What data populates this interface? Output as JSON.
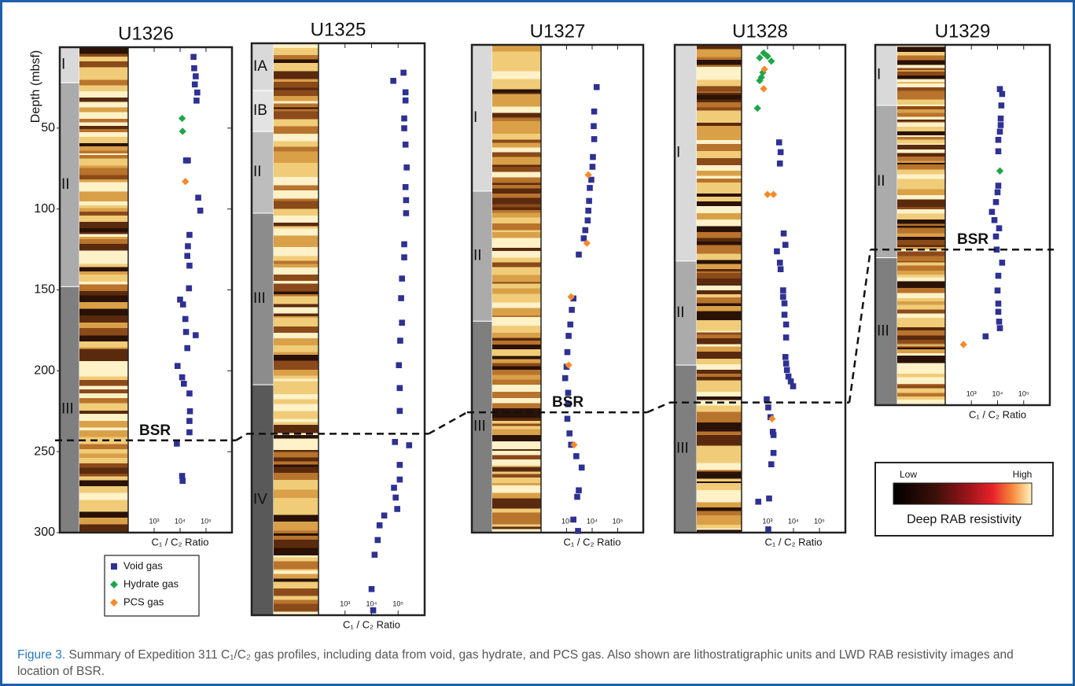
{
  "chart_data": [
    {
      "type": "scatter",
      "title": "U1326",
      "xscale": "log",
      "xlim": [
        100,
        1000000
      ],
      "xticks": [
        {
          "value": 1000,
          "label": "10³"
        },
        {
          "value": 10000,
          "label": "10⁴"
        },
        {
          "value": 100000,
          "label": "10⁵"
        }
      ],
      "xlabel": "C₁ / C₂ Ratio",
      "ylabel": "Depth (mbsf)",
      "y_inverted": true,
      "ylim": [
        0,
        300
      ],
      "yticks": [
        50,
        100,
        150,
        200,
        250,
        300
      ],
      "units": [
        {
          "label": "I",
          "top": 0,
          "bottom": 22,
          "color": "#d9d9d9"
        },
        {
          "label": "II",
          "top": 22,
          "bottom": 148,
          "color": "#ababab"
        },
        {
          "label": "III",
          "top": 148,
          "bottom": 300,
          "color": "#7f7f7f"
        }
      ],
      "bsr_depth": 243,
      "bsr_label": "BSR",
      "series": [
        {
          "name": "Void gas",
          "color": "#2e3192",
          "marker": "square",
          "x": [
            33000,
            35000,
            40000,
            37000,
            46000,
            43000,
            17000,
            20000,
            50000,
            60000,
            23000,
            20000,
            19000,
            23000,
            22000,
            10000,
            13000,
            16000,
            17000,
            40000,
            19000,
            8000,
            12000,
            14000,
            23000,
            24000,
            23000,
            23000,
            7500,
            12000,
            12500
          ],
          "y": [
            6,
            13,
            18,
            23,
            28,
            33,
            70,
            70,
            93,
            101,
            116,
            123,
            129,
            135,
            149,
            156,
            159,
            168,
            176,
            178,
            186,
            197,
            204,
            208,
            214,
            225,
            231,
            238,
            245,
            265,
            268
          ]
        },
        {
          "name": "Hydrate gas",
          "color": "#1fa64a",
          "marker": "diamond",
          "x": [
            12000,
            12500
          ],
          "y": [
            44,
            52
          ]
        },
        {
          "name": "PCS gas",
          "color": "#f58a2a",
          "marker": "diamond",
          "x": [
            16000
          ],
          "y": [
            83
          ]
        }
      ]
    },
    {
      "type": "scatter",
      "title": "U1325",
      "xscale": "log",
      "xlim": [
        100,
        1000000
      ],
      "xticks": [
        {
          "value": 1000,
          "label": "10³"
        },
        {
          "value": 10000,
          "label": "10⁴"
        },
        {
          "value": 100000,
          "label": "10⁵"
        }
      ],
      "xlabel": "C₁ / C₂ Ratio",
      "y_inverted": true,
      "ylim": [
        0,
        350
      ],
      "units": [
        {
          "label": "IA",
          "top": 0,
          "bottom": 29,
          "color": "#d9d9d9"
        },
        {
          "label": "IB",
          "top": 29,
          "bottom": 54,
          "color": "#e3e3e3"
        },
        {
          "label": "II",
          "top": 54,
          "bottom": 104,
          "color": "#bdbdbd"
        },
        {
          "label": "III",
          "top": 104,
          "bottom": 209,
          "color": "#8c8c8c"
        },
        {
          "label": "IV",
          "top": 209,
          "bottom": 350,
          "color": "#595959"
        }
      ],
      "bsr_depth": 239,
      "series": [
        {
          "name": "Void gas",
          "color": "#2e3192",
          "marker": "square",
          "x": [
            66000,
            160000,
            190000,
            190000,
            170000,
            170000,
            190000,
            210000,
            190000,
            200000,
            200000,
            170000,
            170000,
            140000,
            130000,
            140000,
            120000,
            107000,
            115000,
            115000,
            76000,
            260000,
            115000,
            115000,
            70000,
            81000,
            93000,
            30000,
            20000,
            17000,
            13000,
            10000,
            11500
          ],
          "y": [
            23,
            18,
            30,
            35,
            46,
            52,
            62,
            76,
            88,
            96,
            104,
            123,
            131,
            144,
            156,
            171,
            182,
            197,
            211,
            225,
            244,
            246,
            258,
            267,
            272,
            278,
            285,
            289,
            295,
            304,
            313,
            334,
            347
          ]
        }
      ]
    },
    {
      "type": "scatter",
      "title": "U1327",
      "xscale": "log",
      "xlim": [
        100,
        1000000
      ],
      "xticks": [
        {
          "value": 1000,
          "label": "10³"
        },
        {
          "value": 10000,
          "label": "10⁴"
        },
        {
          "value": 100000,
          "label": "10⁵"
        }
      ],
      "xlabel": "C₁ / C₂ Ratio",
      "y_inverted": true,
      "ylim": [
        0,
        300
      ],
      "units": [
        {
          "label": "I",
          "top": 0,
          "bottom": 90,
          "color": "#d9d9d9"
        },
        {
          "label": "II",
          "top": 90,
          "bottom": 170,
          "color": "#ababab"
        },
        {
          "label": "III",
          "top": 170,
          "bottom": 300,
          "color": "#7f7f7f"
        }
      ],
      "bsr_depth": 226,
      "bsr_label": "BSR",
      "series": [
        {
          "name": "Void gas",
          "color": "#2e3192",
          "marker": "square",
          "x": [
            15000,
            12000,
            11500,
            12000,
            10700,
            10300,
            9300,
            8100,
            7600,
            7100,
            6700,
            5400,
            4700,
            3000,
            1850,
            1600,
            1400,
            1200,
            1070,
            1000,
            880,
            1150,
            1150,
            1070,
            1300,
            1500,
            2400,
            3900,
            3000,
            2600,
            1850,
            2800
          ],
          "y": [
            26,
            41,
            50,
            58,
            69,
            75,
            83,
            88,
            96,
            102,
            108,
            114,
            119,
            129,
            156,
            163,
            172,
            179,
            189,
            198,
            205,
            214,
            221,
            230,
            239,
            246,
            253,
            260,
            274,
            278,
            292,
            299
          ]
        },
        {
          "name": "PCS gas",
          "color": "#f58a2a",
          "marker": "diamond",
          "x": [
            7100,
            6200,
            1500,
            1200,
            1950
          ],
          "y": [
            80,
            122,
            155,
            197,
            246
          ]
        }
      ]
    },
    {
      "type": "scatter",
      "title": "U1328",
      "xscale": "log",
      "xlim": [
        100,
        1000000
      ],
      "xticks": [
        {
          "value": 1000,
          "label": "10³"
        },
        {
          "value": 10000,
          "label": "10⁴"
        },
        {
          "value": 100000,
          "label": "10⁵"
        }
      ],
      "xlabel": "C₁ / C₂ Ratio",
      "y_inverted": true,
      "ylim": [
        0,
        300
      ],
      "units": [
        {
          "label": "I",
          "top": 0,
          "bottom": 133,
          "color": "#d9d9d9"
        },
        {
          "label": "II",
          "top": 133,
          "bottom": 197,
          "color": "#ababab"
        },
        {
          "label": "III",
          "top": 197,
          "bottom": 300,
          "color": "#7f7f7f"
        }
      ],
      "bsr_depth": 220,
      "series": [
        {
          "name": "Void gas",
          "color": "#2e3192",
          "marker": "square",
          "x": [
            2800,
            3200,
            3000,
            4200,
            4900,
            2300,
            3000,
            3200,
            4000,
            4000,
            4500,
            4500,
            5200,
            5200,
            4900,
            5200,
            5600,
            6400,
            7900,
            9700,
            930,
            1070,
            1300,
            1600,
            1700,
            1700,
            1400,
            440,
            1150,
            1070
          ],
          "y": [
            60,
            66,
            73,
            116,
            123,
            127,
            134,
            138,
            151,
            155,
            159,
            166,
            172,
            180,
            192,
            196,
            200,
            204,
            207,
            210,
            218,
            223,
            229,
            238,
            240,
            251,
            258,
            281,
            279,
            298
          ]
        },
        {
          "name": "Hydrate gas",
          "color": "#1fa64a",
          "marker": "diamond",
          "x": [
            500,
            710,
            1000,
            1400,
            580,
            660,
            500,
            410
          ],
          "y": [
            8,
            5,
            7,
            10,
            20,
            17,
            22,
            39
          ]
        },
        {
          "name": "PCS gas",
          "color": "#f58a2a",
          "marker": "diamond",
          "x": [
            760,
            710,
            1000,
            1700,
            1500
          ],
          "y": [
            15,
            27,
            92,
            92,
            230
          ]
        }
      ]
    },
    {
      "type": "scatter",
      "title": "U1329",
      "xscale": "log",
      "xlim": [
        100,
        1000000
      ],
      "xticks": [
        {
          "value": 1000,
          "label": "10³"
        },
        {
          "value": 10000,
          "label": "10⁴"
        },
        {
          "value": 100000,
          "label": "10⁵"
        }
      ],
      "xlabel": "C₁ / C₂ Ratio",
      "y_inverted": true,
      "ylim": [
        0,
        220
      ],
      "units": [
        {
          "label": "I",
          "top": 0,
          "bottom": 37,
          "color": "#d9d9d9"
        },
        {
          "label": "II",
          "top": 37,
          "bottom": 130,
          "color": "#ababab"
        },
        {
          "label": "III",
          "top": 130,
          "bottom": 220,
          "color": "#7f7f7f"
        }
      ],
      "bsr_depth": 125,
      "bsr_label": "BSR",
      "series": [
        {
          "name": "Void gas",
          "color": "#2e3192",
          "marker": "square",
          "x": [
            12300,
            15000,
            14000,
            13200,
            13200,
            12300,
            10700,
            10700,
            10700,
            10000,
            8700,
            6100,
            7600,
            11500,
            8700,
            9300,
            15000,
            10700,
            10000,
            10700,
            10700,
            11500,
            12300,
            3500
          ],
          "y": [
            27,
            30,
            37,
            45,
            49,
            53,
            58,
            65,
            86,
            90,
            96,
            102,
            107,
            112,
            117,
            125,
            133,
            141,
            150,
            158,
            163,
            169,
            173,
            178
          ]
        },
        {
          "name": "Hydrate gas",
          "color": "#1fa64a",
          "marker": "diamond",
          "x": [
            12300
          ],
          "y": [
            77
          ]
        },
        {
          "name": "PCS gas",
          "color": "#f58a2a",
          "marker": "diamond",
          "x": [
            500
          ],
          "y": [
            183
          ]
        }
      ]
    }
  ],
  "colorbar": {
    "low": "Low",
    "high": "High",
    "label": "Deep RAB resistivity"
  },
  "caption": {
    "label": "Figure 3.",
    "text": "Summary of Expedition 311 C₁/C₂ gas profiles, including data from void, gas hydrate, and PCS gas. Also shown are lithostratigraphic units and LWD RAB resistivity images and location of BSR."
  }
}
